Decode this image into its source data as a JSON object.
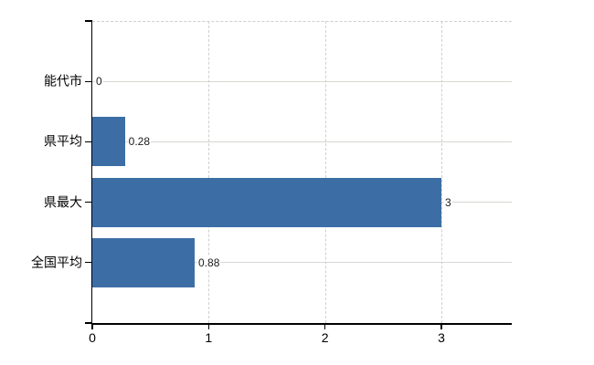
{
  "chart_data": {
    "type": "bar",
    "orientation": "horizontal",
    "categories": [
      "能代市",
      "県平均",
      "県最大",
      "全国平均"
    ],
    "values": [
      0,
      0.28,
      3,
      0.88
    ],
    "value_labels": [
      "0",
      "0.28",
      "3",
      "0.88"
    ],
    "x_ticks": [
      0,
      1,
      2,
      3
    ],
    "x_tick_labels": [
      "0",
      "1",
      "2",
      "3"
    ],
    "xlim": [
      0,
      3.6
    ],
    "grid": true,
    "legend": false,
    "colors": {
      "bar": "#3c6ea5",
      "grid_horizontal": "#d5d8d2",
      "grid_vertical": "#cfcfcf",
      "axis": "#000000",
      "value_label": "#1a1a1a",
      "tick_label": "#000000"
    }
  }
}
